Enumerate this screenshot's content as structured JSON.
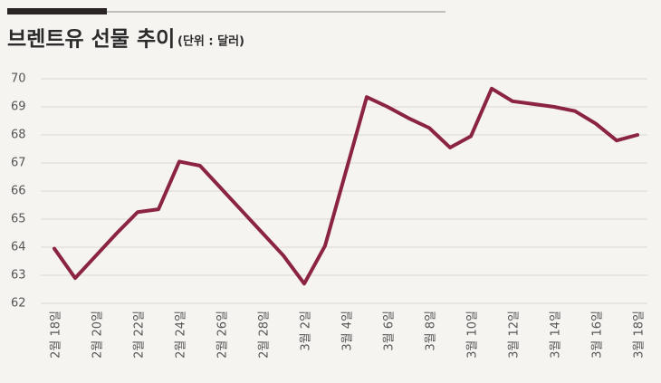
{
  "chart_data": {
    "type": "line",
    "title": "브렌트유 선물 추이",
    "subtitle": "(단위 : 달러)",
    "categories": [
      "2월 18일",
      null,
      "2월 20일",
      null,
      "2월 22일",
      null,
      "2월 24일",
      null,
      "2월 26일",
      null,
      "2월 28일",
      null,
      "3월 2일",
      null,
      "3월 4일",
      null,
      "3월 6일",
      null,
      "3월 8일",
      null,
      "3월 10일",
      null,
      "3월 12일",
      null,
      "3월 14일",
      null,
      "3월 16일",
      null,
      "3월 18일"
    ],
    "values": [
      63.95,
      62.9,
      63.7,
      64.5,
      65.25,
      65.35,
      67.05,
      66.9,
      66.1,
      65.3,
      64.5,
      63.7,
      62.7,
      64.05,
      66.7,
      69.35,
      69.0,
      68.6,
      68.25,
      67.55,
      67.95,
      69.65,
      69.2,
      69.1,
      69.0,
      68.85,
      68.4,
      67.8,
      68.0
    ],
    "color": "#8b2342",
    "ylim": [
      62,
      70
    ],
    "yticks": [
      62,
      63,
      64,
      65,
      66,
      67,
      68,
      69,
      70
    ],
    "grid": true
  }
}
